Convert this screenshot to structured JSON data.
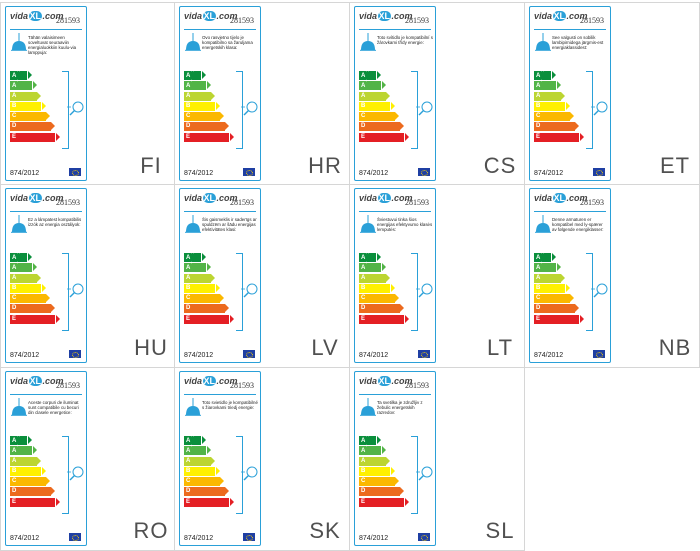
{
  "brand": {
    "prefix": "vida",
    "mark": "XL",
    "suffix": ".com"
  },
  "product_code": "281593",
  "regulation": "874/2012",
  "energy_classes": [
    {
      "label": "A",
      "sup": "++",
      "color": "#0a8f3c",
      "width": 0.3
    },
    {
      "label": "A",
      "sup": "+",
      "color": "#52b447",
      "width": 0.38
    },
    {
      "label": "A",
      "sup": "",
      "color": "#bcd531",
      "width": 0.46
    },
    {
      "label": "B",
      "sup": "",
      "color": "#fff000",
      "width": 0.54
    },
    {
      "label": "C",
      "sup": "",
      "color": "#fbb800",
      "width": 0.62
    },
    {
      "label": "D",
      "sup": "",
      "color": "#ec6a1e",
      "width": 0.7
    },
    {
      "label": "E",
      "sup": "",
      "color": "#e41f24",
      "width": 0.78
    }
  ],
  "colors": {
    "accent": "#2aa0d8",
    "eu_flag": "#1f3fa3"
  },
  "labels": [
    {
      "lang": "FI",
      "text": "Tähän valaisimeen soveltuvat seuraaviin energialuokkiin kuulu-via lamppuja:"
    },
    {
      "lang": "HR",
      "text": "Ovo rasvjetno tijelo je kompatibilno sa žaruljama energetskih klasa:"
    },
    {
      "lang": "CS",
      "text": "Toto svítidlo je kompatibilní s žárovkami třídy energie:"
    },
    {
      "lang": "ET",
      "text": "See valgusti on sobilik lambipirnidega järgmis-est energiaklassidest:"
    },
    {
      "lang": "HU",
      "text": "Ez a lámpatest kompatibilis izzók az energia osztályok:"
    },
    {
      "lang": "LV",
      "text": "Šis gaismeklis ir saderīgs ar spuldzēm ar šādu energijas efektivitātes klasi:"
    },
    {
      "lang": "LT",
      "text": "Šviestuvui tinka šios energijas efektyvumo klasės lemputės:"
    },
    {
      "lang": "NB",
      "text": "Denne armaturen er kompatibel med ly-spærer av følgende energiklasser:"
    },
    {
      "lang": "RO",
      "text": "Aceste corpuri de iluminat sunt compatibile cu becuri din clasele energetice:"
    },
    {
      "lang": "SK",
      "text": "Toto svietidlo je kompatibilné s žiarovkami triedj energie:"
    },
    {
      "lang": "SL",
      "text": "Ta svetilka je združljiv z žebulic energetskih razredov:"
    }
  ]
}
